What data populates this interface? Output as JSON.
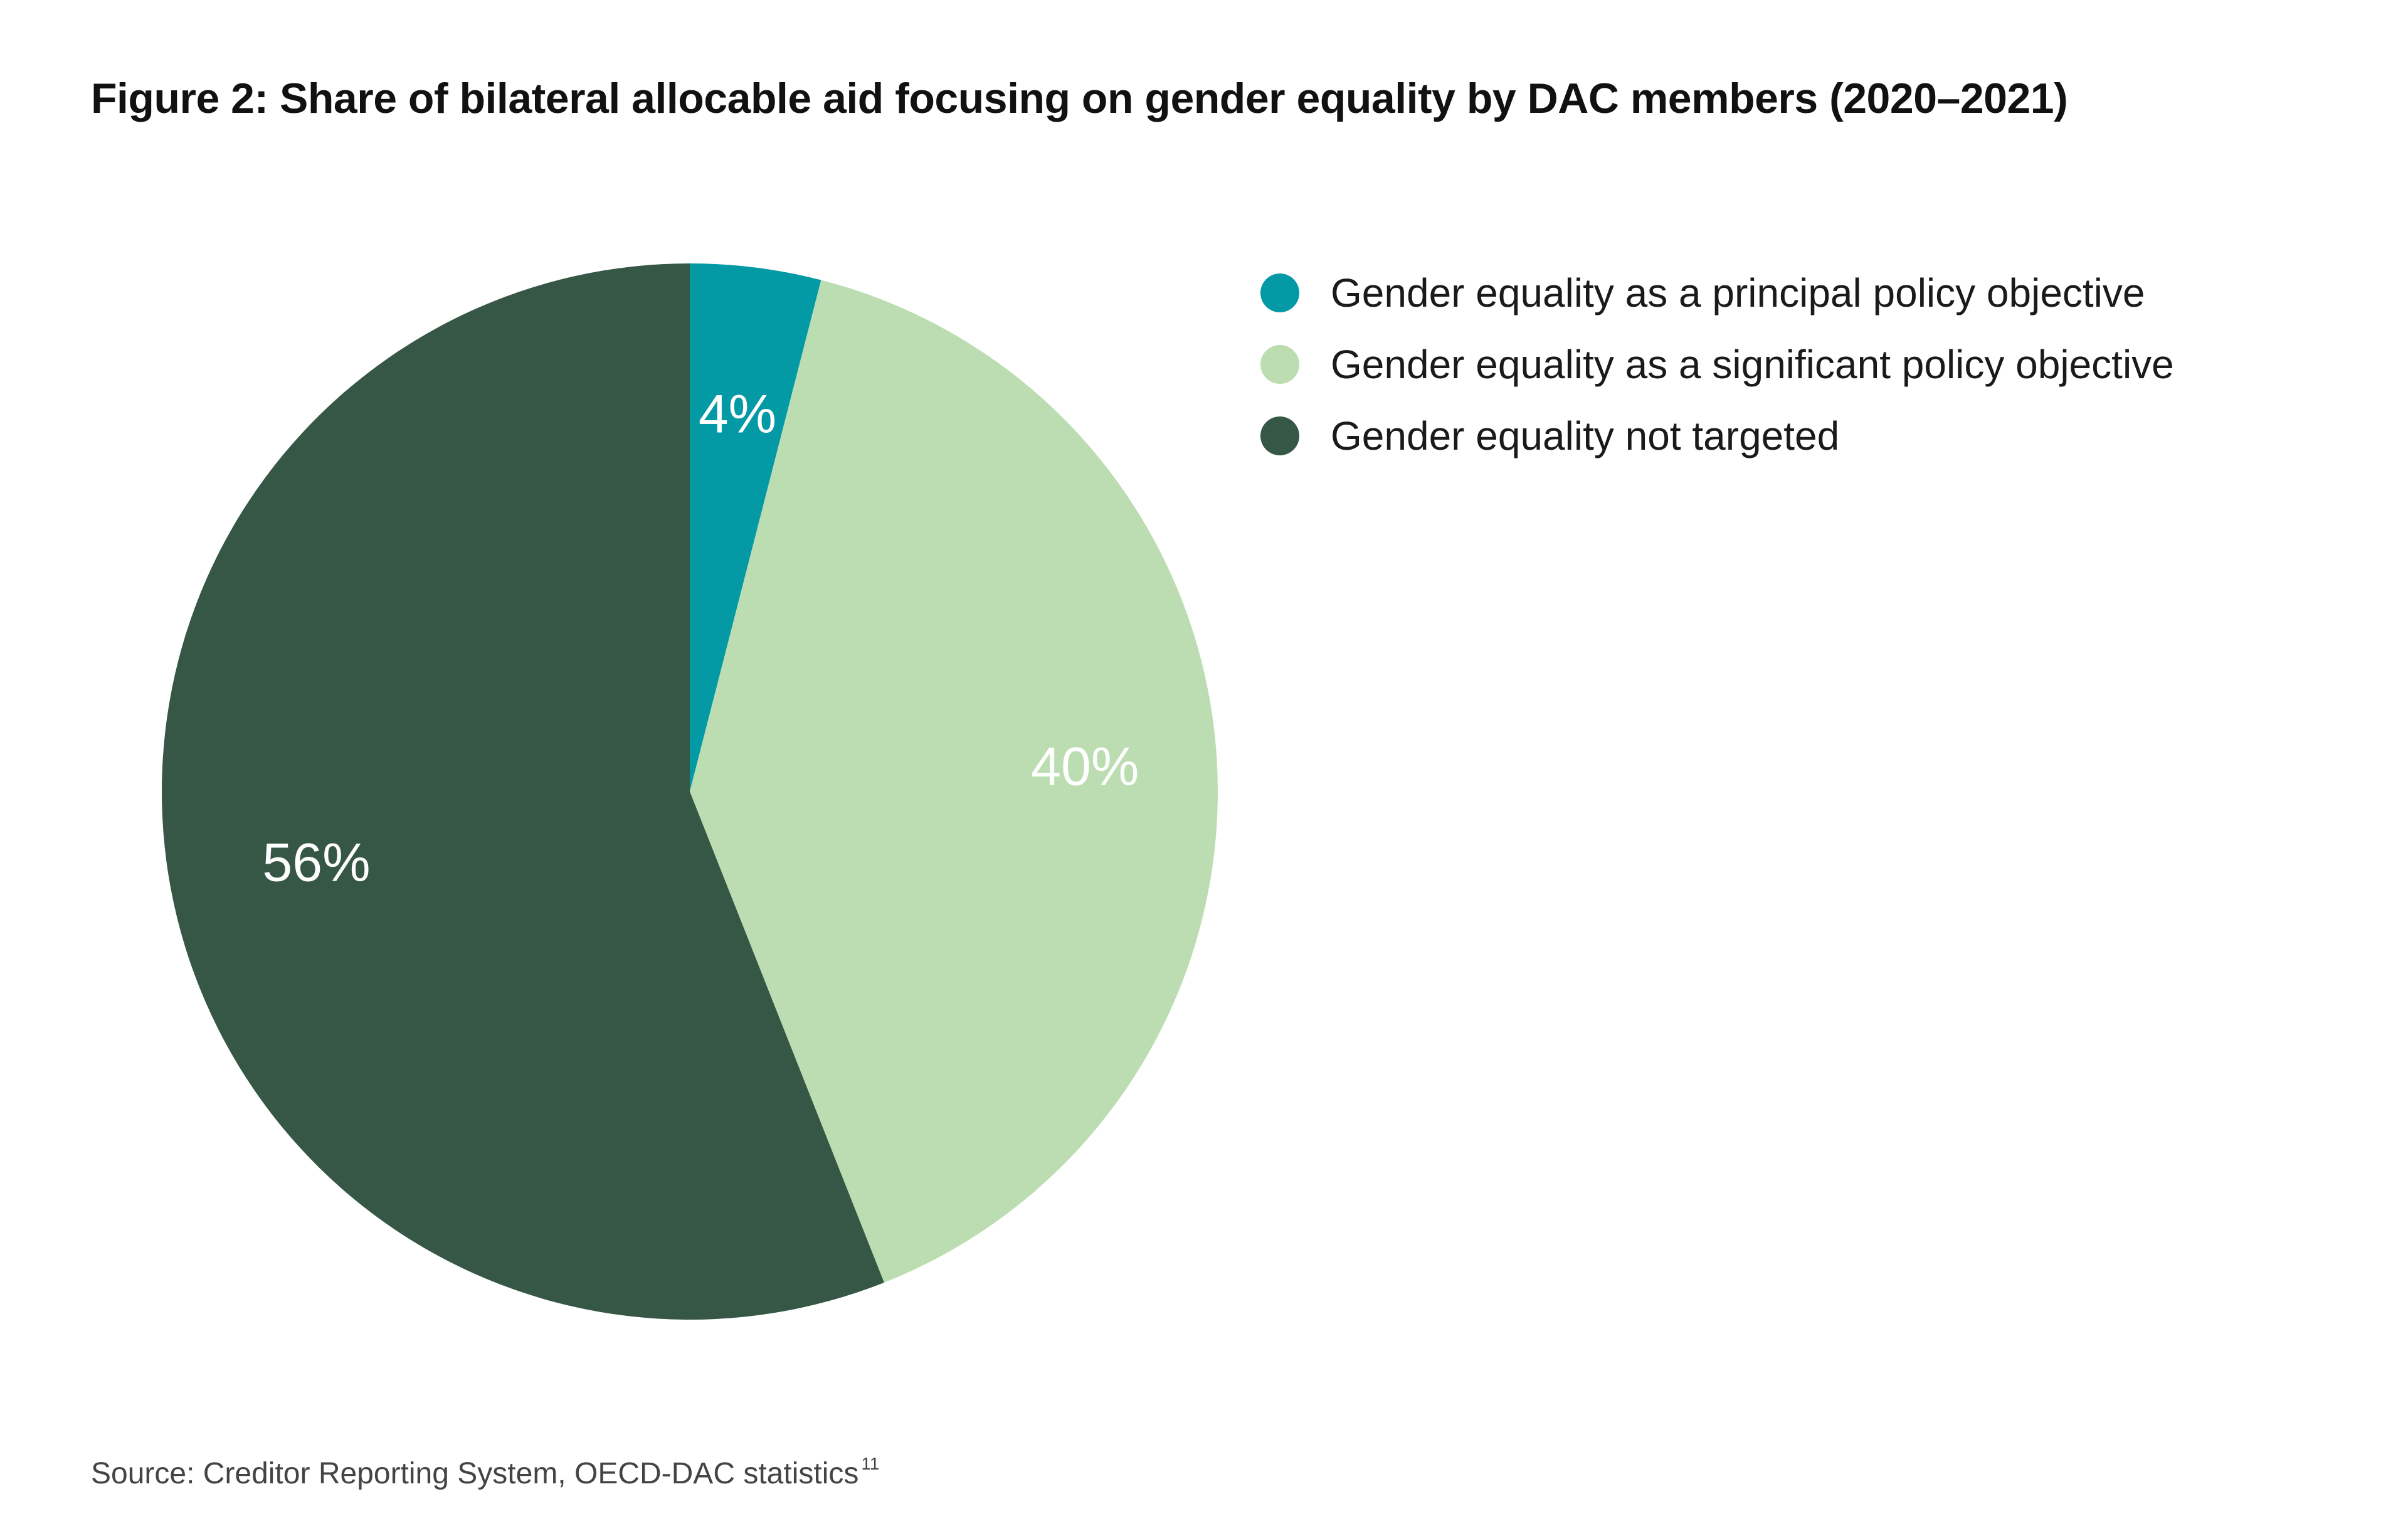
{
  "title": "Figure 2: Share of bilateral allocable aid focusing on gender equality by DAC members (2020–2021)",
  "source": "Source: Creditor Reporting System, OECD-DAC statistics",
  "source_footnote": "11",
  "chart_data": {
    "type": "pie",
    "title": "Figure 2: Share of bilateral allocable aid focusing on gender equality by DAC members (2020–2021)",
    "legend_position": "top-right",
    "slices": [
      {
        "name": "Gender equality as a principal policy objective",
        "value": 4,
        "label": "4%",
        "color": "#039aa6"
      },
      {
        "name": "Gender equality as a significant policy objective",
        "value": 40,
        "label": "40%",
        "color": "#bcddb1"
      },
      {
        "name": "Gender equality not targeted",
        "value": 56,
        "label": "56%",
        "color": "#365745"
      }
    ]
  }
}
